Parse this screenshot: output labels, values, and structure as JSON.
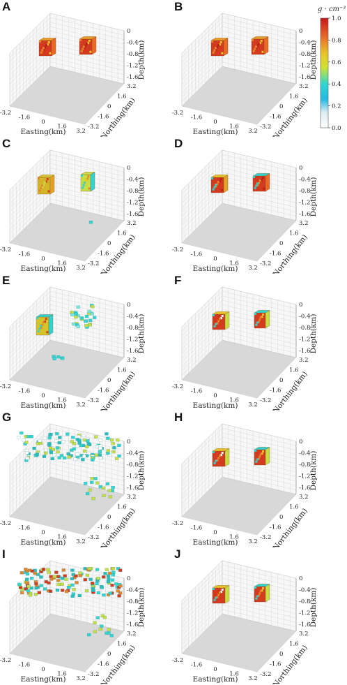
{
  "figure": {
    "colorbar": {
      "title": "g · cm⁻³",
      "ticks": [
        "1.0",
        "0.8",
        "0.6",
        "0.4",
        "0.2",
        "0.0"
      ],
      "colors": [
        "#cc1f1a",
        "#e8762a",
        "#e6c229",
        "#cfe02e",
        "#27d4d1",
        "#1fb6e0",
        "#dfeef2",
        "#ffffff"
      ]
    },
    "axes": {
      "easting_label": "Easting(km)",
      "northing_label": "Northing(km)",
      "depth_label": "Depth(km)",
      "easting_ticks": [
        "-3.2",
        "-1.6",
        "0",
        "1.6",
        "3.2"
      ],
      "northing_ticks": [
        "-3.2",
        "-1.6",
        "0",
        "1.6",
        "3.2"
      ],
      "depth_ticks": [
        "0",
        "-0.4",
        "-0.8",
        "-1.2",
        "-1.6"
      ]
    },
    "panels": [
      {
        "label": "A",
        "style": "solid-red"
      },
      {
        "label": "B",
        "style": "solid-red"
      },
      {
        "label": "C",
        "style": "yellow"
      },
      {
        "label": "D",
        "style": "red-cyan"
      },
      {
        "label": "E",
        "style": "cyan-scatter"
      },
      {
        "label": "F",
        "style": "red-frame"
      },
      {
        "label": "G",
        "style": "cyan-layer"
      },
      {
        "label": "H",
        "style": "red-frame"
      },
      {
        "label": "I",
        "style": "mixed-layer"
      },
      {
        "label": "J",
        "style": "red-frame"
      }
    ]
  }
}
